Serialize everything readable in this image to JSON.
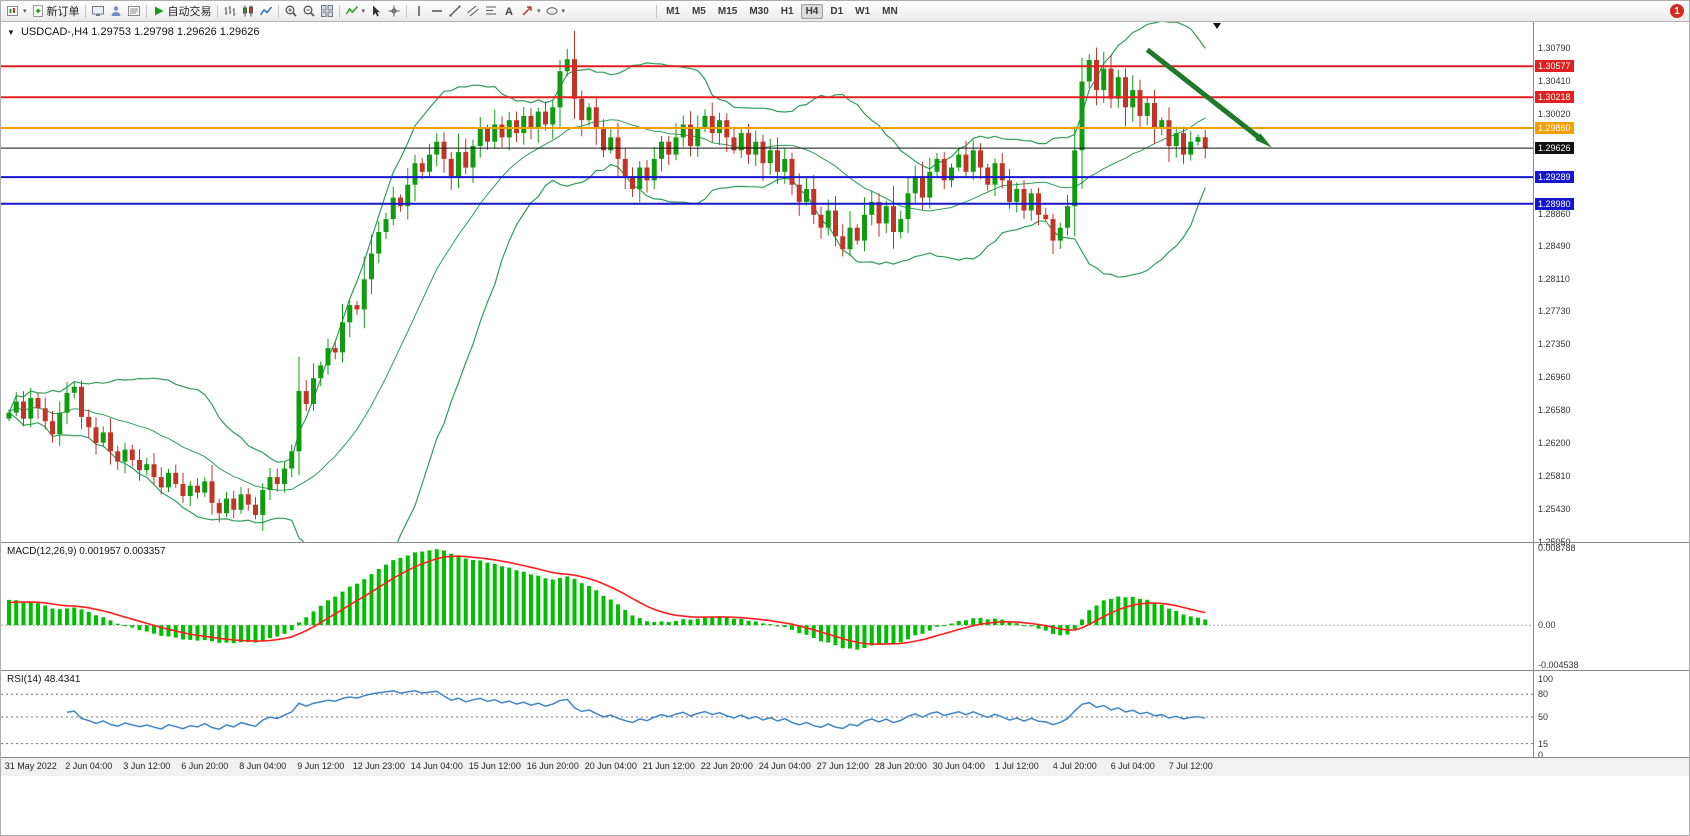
{
  "toolbar": {
    "new_order": "新订单",
    "autotrade": "自动交易",
    "timeframes": [
      "M1",
      "M5",
      "M15",
      "M30",
      "H1",
      "H4",
      "D1",
      "W1",
      "MN"
    ],
    "active_timeframe": "H4",
    "notification_count": "1",
    "icons": [
      "new-chart",
      "new-order",
      "market-watch",
      "profiles",
      "terminal",
      "autotrading",
      "bar-chart",
      "candlestick-chart",
      "line-chart",
      "zoom-in",
      "zoom-out",
      "tile-windows",
      "indicators",
      "cursor",
      "crosshair",
      "vertical-line",
      "horizontal-line",
      "trendline",
      "equidistant-channel",
      "fibonacci-retracement",
      "text",
      "arrow-tools",
      "shapes"
    ]
  },
  "chart_header": {
    "collapse_toggle": "▼",
    "symbol_period": "USDCAD-,H4",
    "ohlc": "1.29753 1.29798 1.29626 1.29626"
  },
  "price_axis": {
    "ticks": [
      "1.30790",
      "1.30410",
      "1.30020",
      "1.28860",
      "1.28490",
      "1.28110",
      "1.27730",
      "1.27350",
      "1.26960",
      "1.26580",
      "1.26200",
      "1.25810",
      "1.25430",
      "1.25050"
    ]
  },
  "macd_panel": {
    "title": "MACD(12,26,9) 0.001957 0.003357",
    "axis_labels": [
      "0.008788",
      "0.00",
      "-0.004538"
    ]
  },
  "rsi_panel": {
    "title": "RSI(14) 48.4341",
    "axis_labels": [
      "100",
      "80",
      "50",
      "15",
      "0"
    ]
  },
  "chart_data": {
    "type": "candlestick",
    "symbol": "USDCAD",
    "period": "H4",
    "current_bar": {
      "open": "1.29753",
      "high": "1.29798",
      "low": "1.29626",
      "close": "1.29626"
    },
    "up_color": "#0F9D0F",
    "down_color": "#C23328",
    "first_open": 1.2648,
    "price_anchor": {
      "price": 1.3079,
      "y": 47
    },
    "pixels_per_unit": 8600,
    "closes": [
      1.2655,
      1.2668,
      1.2648,
      1.2672,
      1.266,
      1.2645,
      1.263,
      1.2655,
      1.2678,
      1.2685,
      1.265,
      1.2638,
      1.262,
      1.2632,
      1.261,
      1.2598,
      1.2612,
      1.26,
      1.2588,
      1.2595,
      1.258,
      1.2568,
      1.2585,
      1.2572,
      1.2558,
      1.257,
      1.2562,
      1.2575,
      1.255,
      1.2538,
      1.2555,
      1.2542,
      1.256,
      1.2548,
      1.2536,
      1.2565,
      1.258,
      1.2572,
      1.259,
      1.261,
      1.268,
      1.2665,
      1.2695,
      1.271,
      1.273,
      1.2725,
      1.276,
      1.278,
      1.2775,
      1.281,
      1.284,
      1.2865,
      1.288,
      1.2905,
      1.2895,
      1.292,
      1.2945,
      1.2935,
      1.2955,
      1.297,
      1.295,
      1.293,
      1.2958,
      1.294,
      1.2965,
      1.2985,
      1.297,
      1.299,
      1.2975,
      1.2995,
      1.298,
      1.3,
      1.2985,
      1.3005,
      1.299,
      1.301,
      1.3052,
      1.3066,
      1.302,
      1.2995,
      1.301,
      1.2985,
      1.296,
      1.2975,
      1.295,
      1.293,
      1.2915,
      1.294,
      1.2925,
      1.295,
      1.297,
      1.2955,
      1.2975,
      1.299,
      1.2965,
      1.2985,
      1.3,
      1.298,
      1.2995,
      1.2975,
      1.296,
      1.298,
      1.2955,
      1.297,
      1.2945,
      1.296,
      1.2935,
      1.295,
      1.292,
      1.29,
      1.2915,
      1.2885,
      1.287,
      1.289,
      1.286,
      1.2845,
      1.287,
      1.2855,
      1.2885,
      1.29,
      1.2875,
      1.2895,
      1.2865,
      1.288,
      1.291,
      1.293,
      1.2905,
      1.2935,
      1.295,
      1.2925,
      1.294,
      1.2955,
      1.2935,
      1.296,
      1.294,
      1.292,
      1.2945,
      1.2925,
      1.29,
      1.2915,
      1.289,
      1.291,
      1.2885,
      1.288,
      1.2855,
      1.287,
      1.2895,
      1.296,
      1.304,
      1.3065,
      1.303,
      1.3055,
      1.302,
      1.3045,
      1.301,
      1.303,
      1.3,
      1.3015,
      1.2985,
      1.2995,
      1.2965,
      1.298,
      1.2955,
      1.297,
      1.29753,
      1.29626
    ],
    "bollinger": {
      "period": 20,
      "deviation": 2,
      "color": "#2E9E5B"
    },
    "h_lines": [
      {
        "label": "1.30577",
        "price": 1.30577,
        "color": "#E02020",
        "width": 2
      },
      {
        "label": "1.30218",
        "price": 1.30218,
        "color": "#E02020",
        "width": 2
      },
      {
        "label": "1.29860",
        "price": 1.2986,
        "color": "#F59E00",
        "width": 2
      },
      {
        "label": "1.29626",
        "price": 1.29626,
        "color": "#111111",
        "width": 1
      },
      {
        "label": "1.29289",
        "price": 1.29289,
        "color": "#1616CF",
        "width": 2
      },
      {
        "label": "1.28980",
        "price": 1.2898,
        "color": "#1616CF",
        "width": 2
      }
    ],
    "annotation_arrow": {
      "from_bar": 157,
      "from_price": 1.3077,
      "to_bar": 173,
      "to_price": 1.2971,
      "color": "#1E7A28"
    },
    "macd": {
      "fast": 12,
      "slow": 26,
      "signal": 9,
      "value": "0.001957",
      "signal_value": "0.003357",
      "hist_color": "#00BE00",
      "signal_color": "#FF1E1E",
      "range": [
        -0.004538,
        0.008788
      ]
    },
    "rsi": {
      "period": 14,
      "value": "48.4341",
      "color": "#3E86C8",
      "levels": [
        80,
        50,
        15
      ]
    },
    "x_labels": [
      {
        "bar": 3,
        "text": "31 May 2022"
      },
      {
        "bar": 11,
        "text": "2 Jun 04:00"
      },
      {
        "bar": 19,
        "text": "3 Jun 12:00"
      },
      {
        "bar": 27,
        "text": "6 Jun 20:00"
      },
      {
        "bar": 35,
        "text": "8 Jun 04:00"
      },
      {
        "bar": 43,
        "text": "9 Jun 12:00"
      },
      {
        "bar": 51,
        "text": "12 Jun 23:00"
      },
      {
        "bar": 59,
        "text": "14 Jun 04:00"
      },
      {
        "bar": 67,
        "text": "15 Jun 12:00"
      },
      {
        "bar": 75,
        "text": "16 Jun 20:00"
      },
      {
        "bar": 83,
        "text": "20 Jun 04:00"
      },
      {
        "bar": 91,
        "text": "21 Jun 12:00"
      },
      {
        "bar": 99,
        "text": "22 Jun 20:00"
      },
      {
        "bar": 107,
        "text": "24 Jun 04:00"
      },
      {
        "bar": 115,
        "text": "27 Jun 12:00"
      },
      {
        "bar": 123,
        "text": "28 Jun 20:00"
      },
      {
        "bar": 131,
        "text": "30 Jun 04:00"
      },
      {
        "bar": 139,
        "text": "1 Jul 12:00"
      },
      {
        "bar": 147,
        "text": "4 Jul 20:00"
      },
      {
        "bar": 155,
        "text": "6 Jul 04:00"
      },
      {
        "bar": 163,
        "text": "7 Jul 12:00"
      }
    ]
  }
}
